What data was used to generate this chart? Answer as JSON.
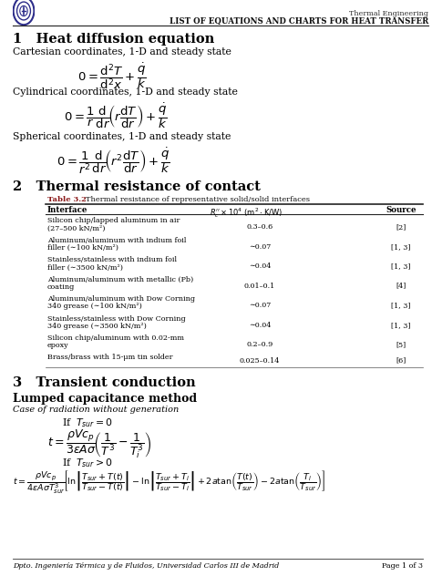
{
  "bg_color": "#ffffff",
  "header_right1": "Thermal Engineering",
  "header_right2": "LIST OF EQUATIONS AND CHARTS FOR HEAT TRANSFER",
  "footer_text": "Dpto. Ingeniería Térmica y de Fluidos, Universidad Carlos III de Madrid",
  "footer_right": "Page 1 of 3",
  "section1_title": "1   Heat diffusion equation",
  "s1_sub1": "Cartesian coordinates, 1-D and steady state",
  "s1_sub2": "Cylindrical coordinates, 1-D and steady state",
  "s1_sub3": "Spherical coordinates, 1-D and steady state",
  "section2_title": "2   Thermal resistance of contact",
  "table_caption_colored": "Table 3.2",
  "table_caption_rest": "   Thermal resistance of representative solid/solid interfaces",
  "col1": "Interface",
  "col2": "$R_c^{\\prime\\prime} \\times 10^4\\ (\\mathrm{m}^2 \\cdot \\mathrm{K/W})$",
  "col3": "Source",
  "table_rows": [
    [
      "Silicon chip/lapped aluminum in air\n(27–500 kN/m²)",
      "0.3–0.6",
      "[2]"
    ],
    [
      "Aluminum/aluminum with indium foil\nfiller (∼100 kN/m²)",
      "∼0.07",
      "[1, 3]"
    ],
    [
      "Stainless/stainless with indium foil\nfiller (∼3500 kN/m²)",
      "∼0.04",
      "[1, 3]"
    ],
    [
      "Aluminum/aluminum with metallic (Pb)\ncoating",
      "0.01–0.1",
      "[4]"
    ],
    [
      "Aluminum/aluminum with Dow Corning\n340 grease (∼100 kN/m²)",
      "∼0.07",
      "[1, 3]"
    ],
    [
      "Stainless/stainless with Dow Corning\n340 grease (∼3500 kN/m²)",
      "∼0.04",
      "[1, 3]"
    ],
    [
      "Silicon chip/aluminum with 0.02-mm\nepoxy",
      "0.2–0.9",
      "[5]"
    ],
    [
      "Brass/brass with 15-μm tin solder",
      "0.025–0.14",
      "[6]"
    ]
  ],
  "section3_title": "3   Transient conduction",
  "s3_sub1": "Lumped capacitance method",
  "s3_sub2": "Case of radiation without generation"
}
